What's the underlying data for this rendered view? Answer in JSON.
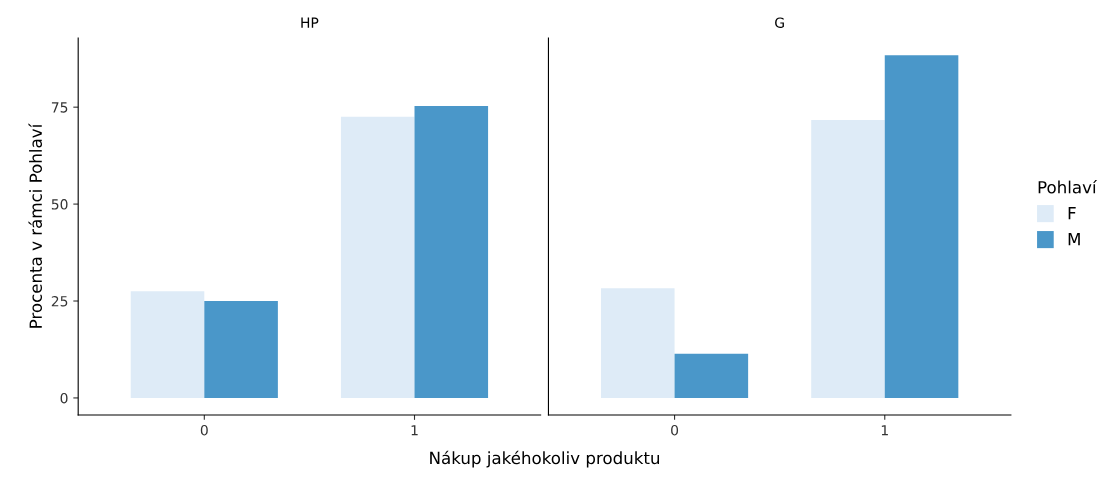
{
  "chart_data": [
    {
      "type": "bar",
      "title": "HP",
      "categories": [
        "0",
        "1"
      ],
      "xlabel": "Nákup jakéhokoliv produktu",
      "ylabel": "Procenta v rámci Pohlaví",
      "legend_title": "Pohlaví",
      "legend": "right",
      "grid": false,
      "ylim": [
        -4.4,
        92.8
      ],
      "yticks": [
        0,
        25,
        50,
        75
      ],
      "series": [
        {
          "name": "F",
          "color": "#deebf7",
          "values": [
            27.5,
            72.5
          ]
        },
        {
          "name": "M",
          "color": "#4a97c9",
          "values": [
            25,
            75.3
          ]
        }
      ]
    },
    {
      "type": "bar",
      "title": "G",
      "categories": [
        "0",
        "1"
      ],
      "grid": false,
      "ylim": [
        -4.4,
        92.8
      ],
      "yticks": [
        0,
        25,
        50,
        75
      ],
      "tick_labels": "x",
      "series": [
        {
          "name": "F",
          "color": "#deebf7",
          "values": [
            28.3,
            71.7
          ]
        },
        {
          "name": "M",
          "color": "#4a97c9",
          "values": [
            11.4,
            88.4
          ]
        }
      ]
    }
  ]
}
